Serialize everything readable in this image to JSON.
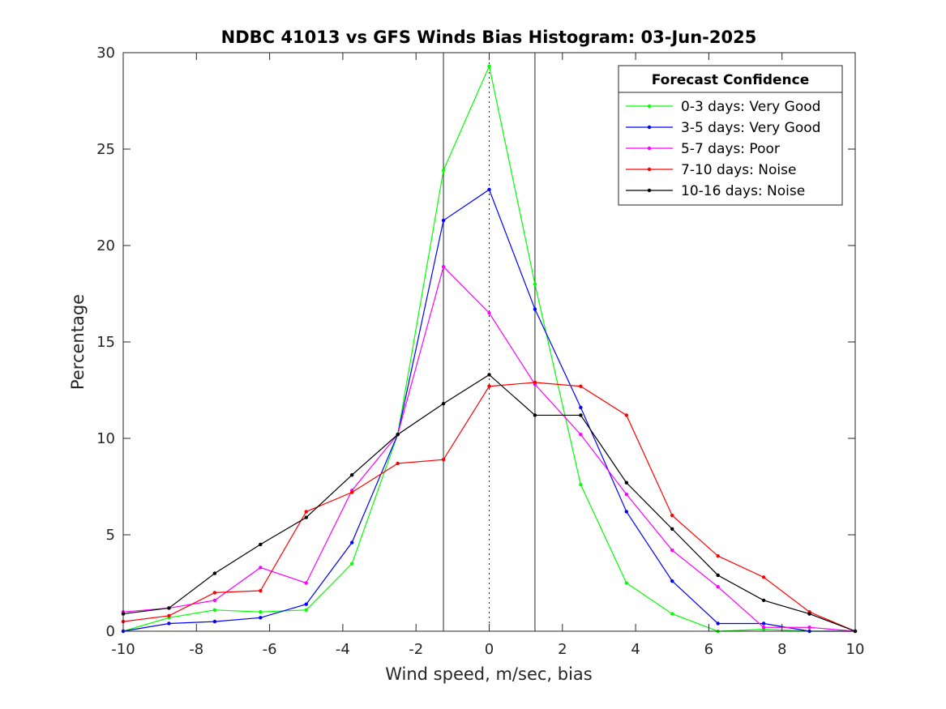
{
  "chart_data": {
    "type": "line",
    "title": "NDBC 41013 vs GFS Winds Bias Histogram: 03-Jun-2025",
    "xlabel": "Wind speed, m/sec, bias",
    "ylabel": "Percentage",
    "xlim": [
      -10,
      10
    ],
    "ylim": [
      0,
      30
    ],
    "xticks": [
      -10,
      -8,
      -6,
      -4,
      -2,
      0,
      2,
      4,
      6,
      8,
      10
    ],
    "yticks": [
      0,
      5,
      10,
      15,
      20,
      25,
      30
    ],
    "grid": false,
    "legend": {
      "title": "Forecast Confidence",
      "placement": "top-right"
    },
    "x": [
      -10,
      -8.75,
      -7.5,
      -6.25,
      -5,
      -3.75,
      -2.5,
      -1.25,
      0,
      1.25,
      2.5,
      3.75,
      5,
      6.25,
      7.5,
      8.75,
      10
    ],
    "vertical_lines": [
      {
        "x": -1.25,
        "style": "solid"
      },
      {
        "x": 0,
        "style": "dotted"
      },
      {
        "x": 1.25,
        "style": "solid"
      }
    ],
    "series": [
      {
        "name": "0-3 days: Very Good",
        "color": "#00ff00",
        "values": [
          0,
          0.7,
          1.1,
          1.0,
          1.1,
          3.5,
          10.2,
          23.9,
          29.3,
          18.0,
          7.6,
          2.5,
          0.9,
          0.0,
          0.1,
          0.0,
          0.0
        ]
      },
      {
        "name": "3-5 days: Very Good",
        "color": "#0000ff",
        "values": [
          0,
          0.4,
          0.5,
          0.7,
          1.4,
          4.6,
          10.2,
          21.3,
          22.9,
          16.7,
          11.6,
          6.2,
          2.6,
          0.4,
          0.4,
          0.0,
          0.0
        ]
      },
      {
        "name": "5-7 days: Poor",
        "color": "#ff00ff",
        "values": [
          1.0,
          1.2,
          1.6,
          3.3,
          2.5,
          7.3,
          10.2,
          18.9,
          16.5,
          12.8,
          10.2,
          7.1,
          4.2,
          2.3,
          0.2,
          0.2,
          0.0
        ]
      },
      {
        "name": "7-10 days: Noise",
        "color": "#ff0000",
        "values": [
          0.5,
          0.8,
          2.0,
          2.1,
          6.2,
          7.2,
          8.7,
          8.9,
          12.7,
          12.9,
          12.7,
          11.2,
          6.0,
          3.9,
          2.8,
          1.0,
          0.0
        ]
      },
      {
        "name": "10-16 days: Noise",
        "color": "#000000",
        "values": [
          0.9,
          1.2,
          3.0,
          4.5,
          5.9,
          8.1,
          10.2,
          11.8,
          13.3,
          11.2,
          11.2,
          7.7,
          5.3,
          2.9,
          1.6,
          0.9,
          0.0
        ]
      }
    ]
  }
}
